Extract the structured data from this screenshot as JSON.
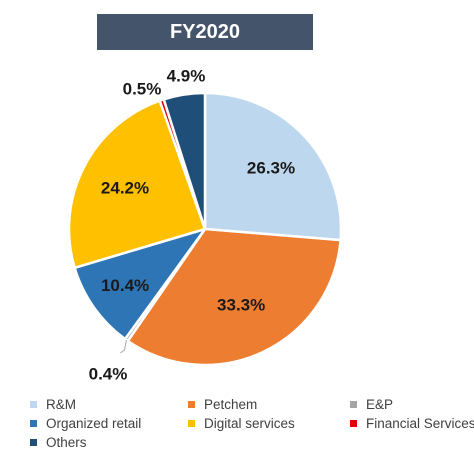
{
  "title": "FY2020",
  "chart_data": {
    "type": "pie",
    "title": "FY2020",
    "start_angle_deg": 0,
    "direction": "clockwise",
    "slices": [
      {
        "label": "R&M",
        "value": 26.3,
        "display": "26.3%",
        "color": "#bdd7ee"
      },
      {
        "label": "Petchem",
        "value": 33.3,
        "display": "33.3%",
        "color": "#ed7d31"
      },
      {
        "label": "E&P",
        "value": 0.4,
        "display": "0.4%",
        "color": "#a5a5a5"
      },
      {
        "label": "Organized retail",
        "value": 10.4,
        "display": "10.4%",
        "color": "#2e75b6"
      },
      {
        "label": "Digital services",
        "value": 24.2,
        "display": "24.2%",
        "color": "#ffc000"
      },
      {
        "label": "Financial Services",
        "value": 0.5,
        "display": "0.5%",
        "color": "#e00000"
      },
      {
        "label": "Others",
        "value": 4.9,
        "display": "4.9%",
        "color": "#1f4e79"
      }
    ],
    "legend_position": "bottom"
  }
}
